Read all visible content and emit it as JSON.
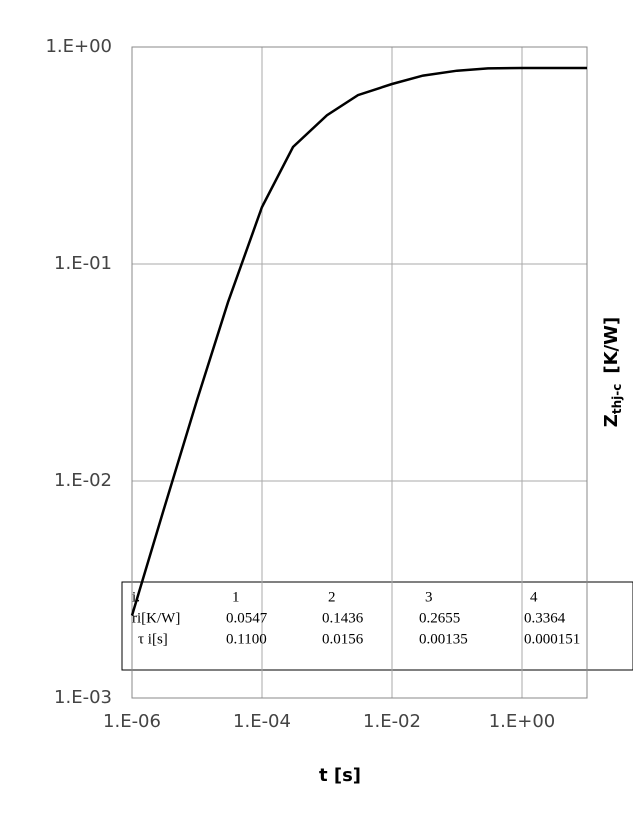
{
  "chart_data": {
    "type": "line",
    "xlabel": "t  [s]",
    "ylabel_symbol": "Z",
    "ylabel_subscript": "thj-c",
    "ylabel_unit": "[K/W]",
    "x_log": true,
    "y_log": true,
    "grid": true,
    "xlim": [
      1e-06,
      10
    ],
    "ylim": [
      0.001,
      1
    ],
    "xticks": [
      {
        "value": 1e-06,
        "label": "1.E-06"
      },
      {
        "value": 0.0001,
        "label": "1.E-04"
      },
      {
        "value": 0.01,
        "label": "1.E-02"
      },
      {
        "value": 1,
        "label": "1.E+00"
      }
    ],
    "yticks": [
      {
        "value": 0.001,
        "label": "1.E-03"
      },
      {
        "value": 0.01,
        "label": "1.E-02"
      },
      {
        "value": 0.1,
        "label": "1.E-01"
      },
      {
        "value": 1,
        "label": "1.E+00"
      }
    ],
    "series": [
      {
        "color": "#000000",
        "x": [
          1e-06,
          3e-06,
          1e-05,
          3e-05,
          0.0001,
          0.0003,
          0.001,
          0.003,
          0.01,
          0.03,
          0.1,
          0.3,
          1,
          10
        ],
        "values": [
          0.0024,
          0.0072,
          0.0236,
          0.0667,
          0.183,
          0.346,
          0.485,
          0.6,
          0.675,
          0.738,
          0.778,
          0.797,
          0.8,
          0.8
        ]
      }
    ]
  },
  "table": {
    "rows": [
      [
        "i:",
        "1",
        "2",
        "3",
        "4"
      ],
      [
        "ri[K/W]",
        "0.0547",
        "0.1436",
        "0.2655",
        "0.3364"
      ],
      [
        "τ i[s]",
        "0.1100",
        "0.0156",
        "0.00135",
        "0.000151"
      ]
    ]
  }
}
